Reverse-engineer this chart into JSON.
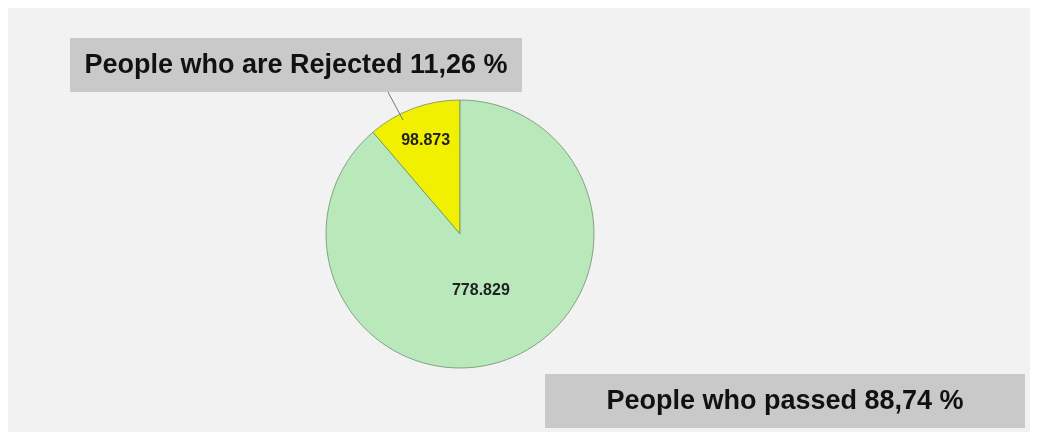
{
  "chart_data": {
    "type": "pie",
    "categories": [
      "People who are Rejected 11,26 %",
      "People who passed 88,74 %"
    ],
    "values": [
      98873,
      778829
    ],
    "value_labels": [
      "98.873",
      "778.829"
    ],
    "colors": [
      "#f0f000",
      "#b9e8bb"
    ]
  }
}
